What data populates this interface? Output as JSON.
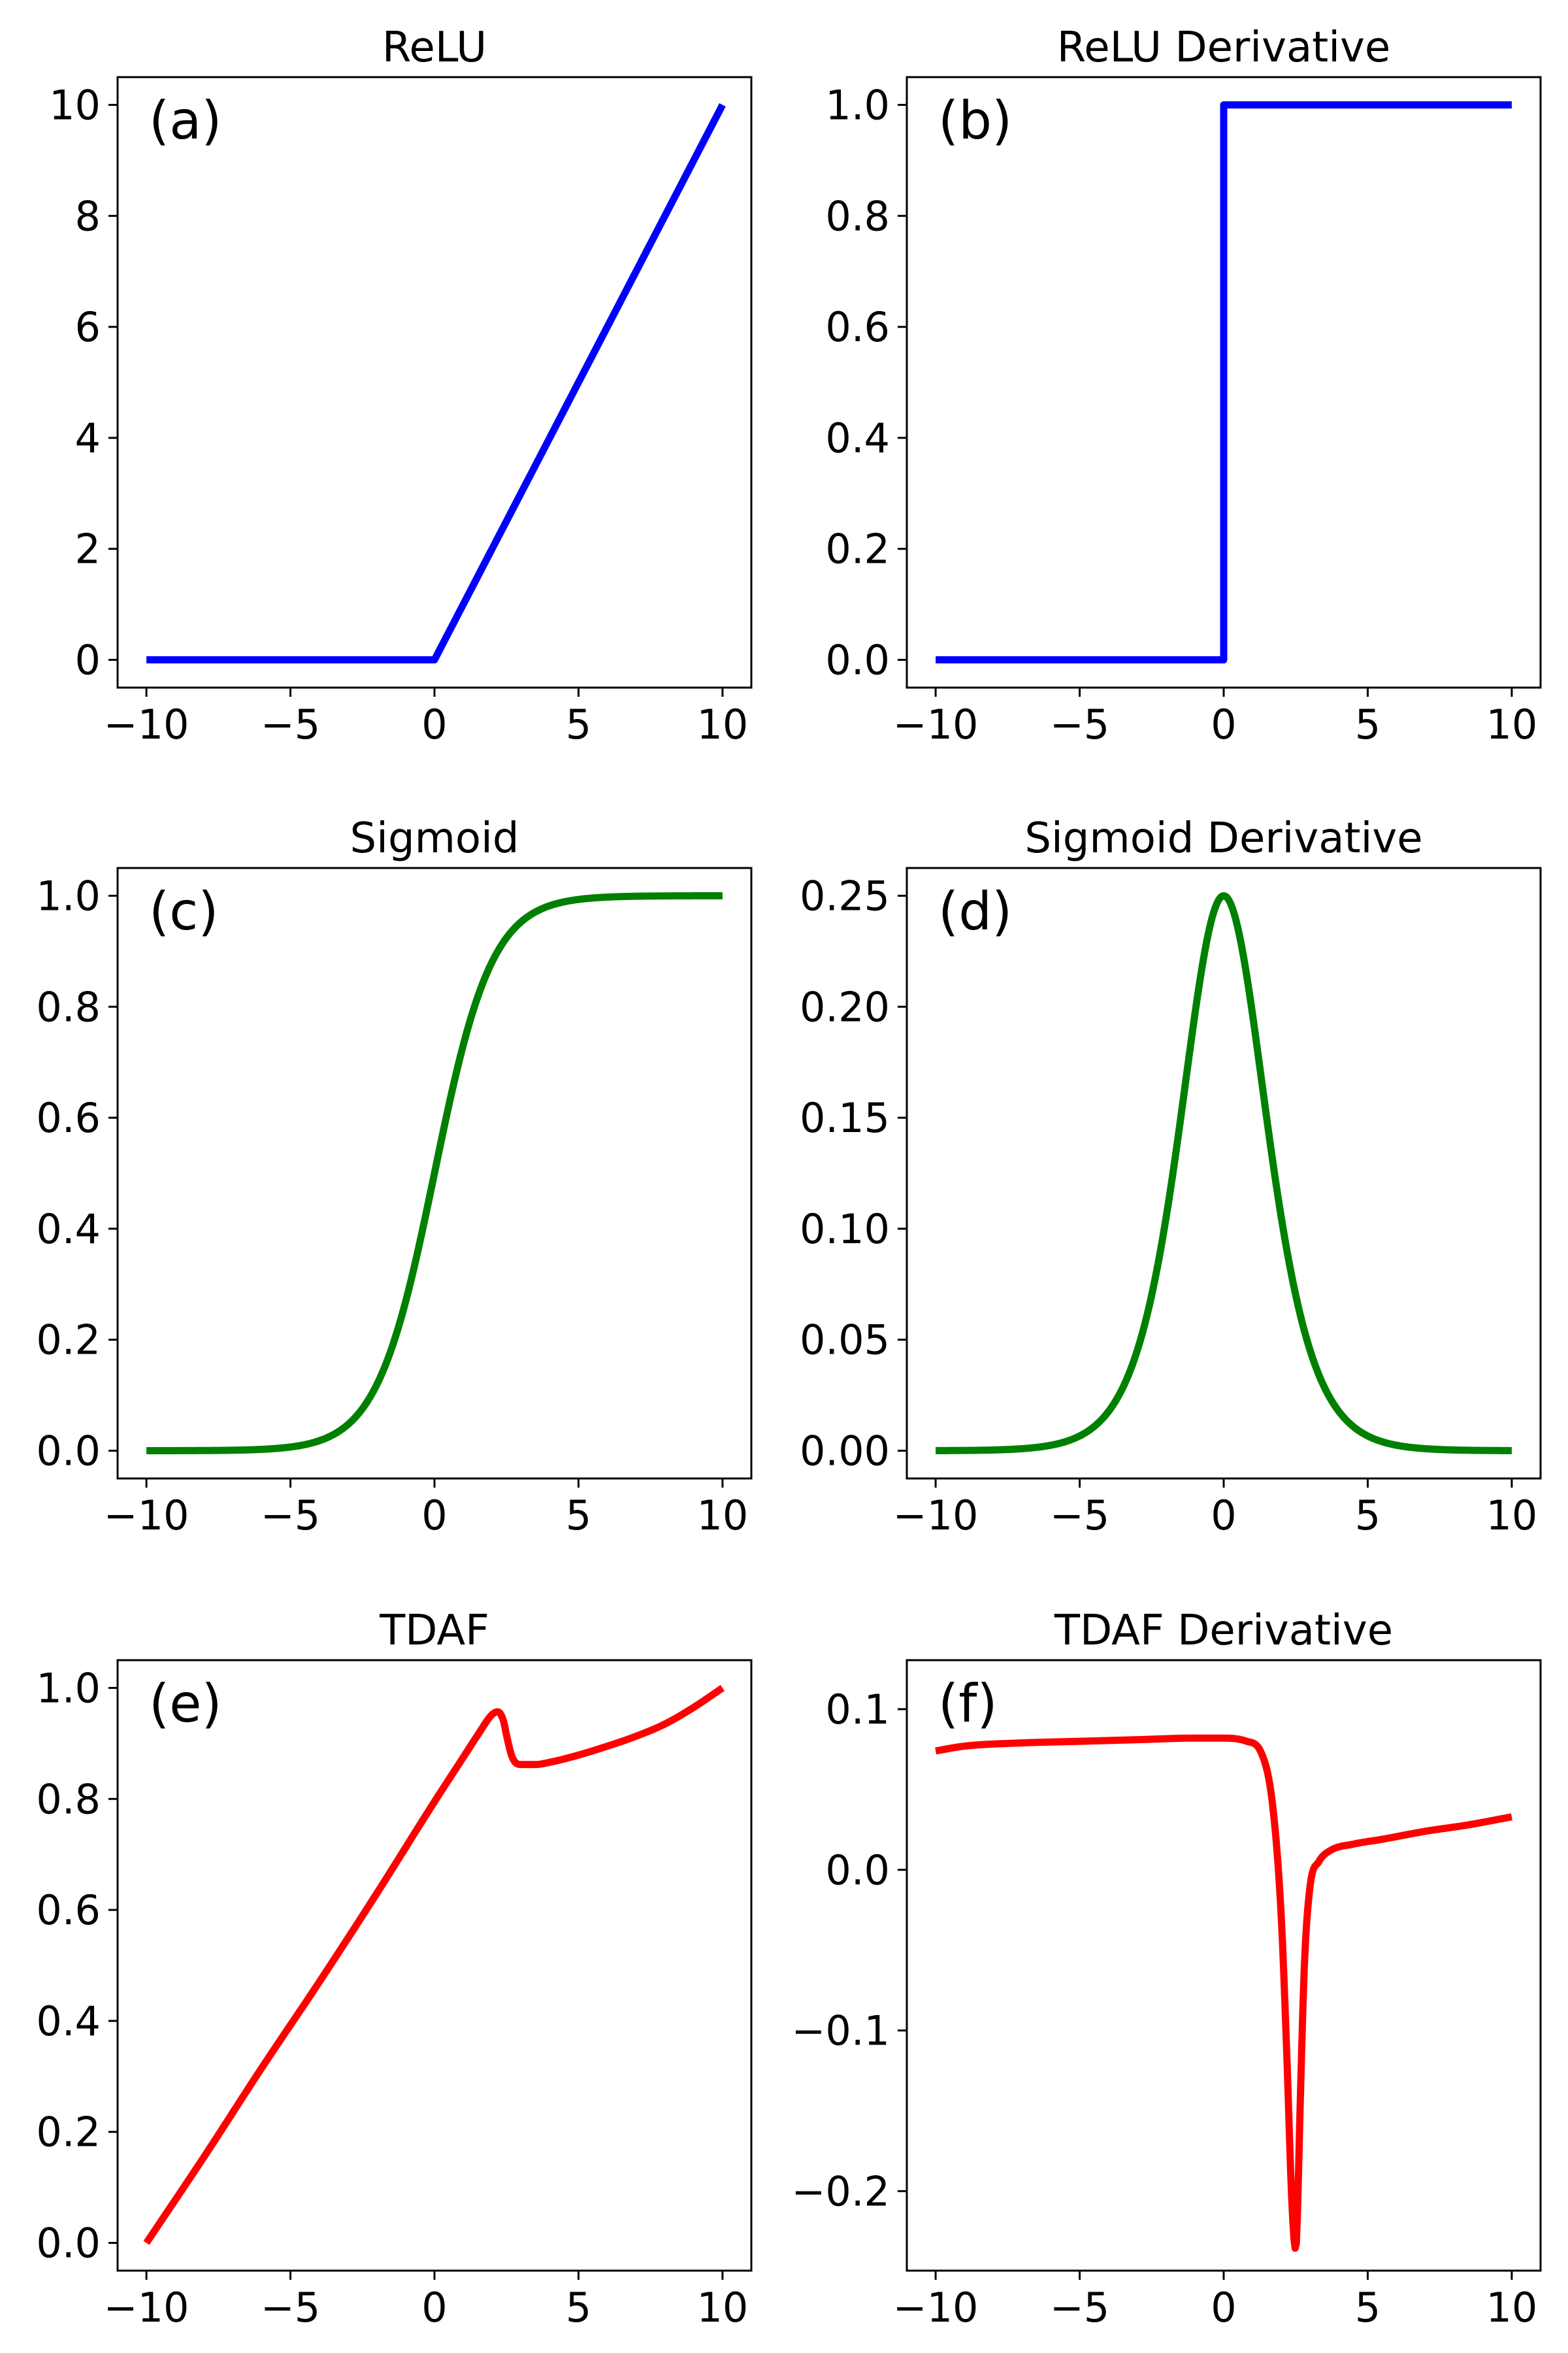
{
  "figure": {
    "background": "#ffffff"
  },
  "chart_data": [
    {
      "panel": "a",
      "type": "line",
      "title": "ReLU",
      "label": "(a)",
      "xlabel": "",
      "ylabel": "",
      "xlim": [
        -11,
        11
      ],
      "ylim": [
        -0.5,
        10.5
      ],
      "xticks": [
        -10,
        -5,
        0,
        5,
        10
      ],
      "xtick_labels": [
        "−10",
        "−5",
        "0",
        "5",
        "10"
      ],
      "yticks": [
        0,
        2,
        4,
        6,
        8,
        10
      ],
      "ytick_labels": [
        "0",
        "2",
        "4",
        "6",
        "8",
        "10"
      ],
      "grid": false,
      "color": "#0000ff",
      "function": "relu",
      "series": [
        {
          "x": [
            -10,
            0,
            10
          ],
          "y": [
            0,
            0,
            10
          ]
        }
      ]
    },
    {
      "panel": "b",
      "type": "line",
      "title": "ReLU Derivative",
      "label": "(b)",
      "xlabel": "",
      "ylabel": "",
      "xlim": [
        -11,
        11
      ],
      "ylim": [
        -0.05,
        1.05
      ],
      "xticks": [
        -10,
        -5,
        0,
        5,
        10
      ],
      "xtick_labels": [
        "−10",
        "−5",
        "0",
        "5",
        "10"
      ],
      "yticks": [
        0,
        0.2,
        0.4,
        0.6,
        0.8,
        1.0
      ],
      "ytick_labels": [
        "0.0",
        "0.2",
        "0.4",
        "0.6",
        "0.8",
        "1.0"
      ],
      "grid": false,
      "color": "#0000ff",
      "function": "relu_derivative",
      "series": [
        {
          "x": [
            -10,
            0,
            0,
            10
          ],
          "y": [
            0,
            0,
            1,
            1
          ]
        }
      ]
    },
    {
      "panel": "c",
      "type": "line",
      "title": "Sigmoid",
      "label": "(c)",
      "xlabel": "",
      "ylabel": "",
      "xlim": [
        -11,
        11
      ],
      "ylim": [
        -0.05,
        1.05
      ],
      "xticks": [
        -10,
        -5,
        0,
        5,
        10
      ],
      "xtick_labels": [
        "−10",
        "−5",
        "0",
        "5",
        "10"
      ],
      "yticks": [
        0,
        0.2,
        0.4,
        0.6,
        0.8,
        1.0
      ],
      "ytick_labels": [
        "0.0",
        "0.2",
        "0.4",
        "0.6",
        "0.8",
        "1.0"
      ],
      "grid": false,
      "color": "#008000",
      "function": "sigmoid",
      "series": [
        {
          "x": [
            -10,
            -5,
            -3,
            -2,
            -1,
            0,
            1,
            2,
            3,
            5,
            10
          ],
          "y": [
            0.0,
            0.0067,
            0.0474,
            0.1192,
            0.2689,
            0.5,
            0.7311,
            0.8808,
            0.9526,
            0.9933,
            1.0
          ]
        }
      ]
    },
    {
      "panel": "d",
      "type": "line",
      "title": "Sigmoid Derivative",
      "label": "(d)",
      "xlabel": "",
      "ylabel": "",
      "xlim": [
        -11,
        11
      ],
      "ylim": [
        -0.0125,
        0.2625
      ],
      "xticks": [
        -10,
        -5,
        0,
        5,
        10
      ],
      "xtick_labels": [
        "−10",
        "−5",
        "0",
        "5",
        "10"
      ],
      "yticks": [
        0,
        0.05,
        0.1,
        0.15,
        0.2,
        0.25
      ],
      "ytick_labels": [
        "0.00",
        "0.05",
        "0.10",
        "0.15",
        "0.20",
        "0.25"
      ],
      "grid": false,
      "color": "#008000",
      "function": "sigmoid_derivative",
      "series": [
        {
          "x": [
            -10,
            -5,
            -3,
            -2,
            -1,
            0,
            1,
            2,
            3,
            5,
            10
          ],
          "y": [
            0.0,
            0.0066,
            0.0452,
            0.105,
            0.1966,
            0.25,
            0.1966,
            0.105,
            0.0452,
            0.0066,
            0.0
          ]
        }
      ]
    },
    {
      "panel": "e",
      "type": "line",
      "title": "TDAF",
      "label": "(e)",
      "xlabel": "",
      "ylabel": "",
      "xlim": [
        -11,
        11
      ],
      "ylim": [
        -0.05,
        1.05
      ],
      "xticks": [
        -10,
        -5,
        0,
        5,
        10
      ],
      "xtick_labels": [
        "−10",
        "−5",
        "0",
        "5",
        "10"
      ],
      "yticks": [
        0,
        0.2,
        0.4,
        0.6,
        0.8,
        1.0
      ],
      "ytick_labels": [
        "0.0",
        "0.2",
        "0.4",
        "0.6",
        "0.8",
        "1.0"
      ],
      "grid": false,
      "color": "#ff0000",
      "series": [
        {
          "x": [
            -10,
            -8,
            -6,
            -4,
            -2,
            0,
            1,
            1.5,
            2,
            2.2,
            2.4,
            2.5,
            2.7,
            3.0,
            3.5,
            4,
            5,
            6,
            7,
            8,
            9,
            10
          ],
          "y": [
            0.0,
            0.155,
            0.315,
            0.47,
            0.63,
            0.795,
            0.875,
            0.915,
            0.952,
            0.957,
            0.94,
            0.915,
            0.875,
            0.862,
            0.862,
            0.866,
            0.879,
            0.895,
            0.913,
            0.935,
            0.965,
            1.0
          ]
        }
      ]
    },
    {
      "panel": "f",
      "type": "line",
      "title": "TDAF Derivative",
      "label": "(f)",
      "xlabel": "",
      "ylabel": "",
      "xlim": [
        -11,
        11
      ],
      "ylim": [
        -0.2495,
        0.1305
      ],
      "xticks": [
        -10,
        -5,
        0,
        5,
        10
      ],
      "xtick_labels": [
        "−10",
        "−5",
        "0",
        "5",
        "10"
      ],
      "yticks": [
        -0.2,
        -0.1,
        0.0,
        0.1
      ],
      "ytick_labels": [
        "−0.2",
        "−0.1",
        "0.0",
        "0.1"
      ],
      "grid": false,
      "color": "#ff0000",
      "series": [
        {
          "x": [
            -10,
            -9,
            -7,
            -5,
            -3,
            -1,
            0,
            0.8,
            1.3,
            1.7,
            2.0,
            2.2,
            2.35,
            2.45,
            2.5,
            2.55,
            2.65,
            2.8,
            3.0,
            3.3,
            3.7,
            4.5,
            5.5,
            7,
            8.5,
            10
          ],
          "y": [
            0.074,
            0.077,
            0.079,
            0.08,
            0.081,
            0.082,
            0.082,
            0.08,
            0.073,
            0.04,
            -0.03,
            -0.12,
            -0.2,
            -0.232,
            -0.236,
            -0.22,
            -0.15,
            -0.06,
            -0.01,
            0.005,
            0.012,
            0.016,
            0.019,
            0.024,
            0.028,
            0.033
          ]
        }
      ]
    }
  ]
}
